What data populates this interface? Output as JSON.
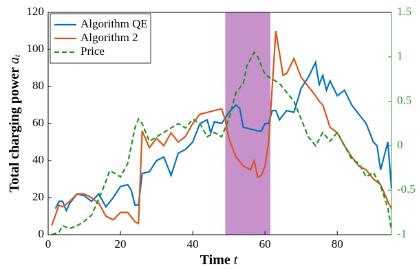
{
  "chart_data": {
    "type": "line",
    "xlabel": "Time",
    "xlabel_symbol": "t",
    "ylabel": "Total charging power",
    "ylabel_symbol": "a",
    "ylabel_subscript": "t",
    "xlim": [
      0,
      95
    ],
    "xticks": [
      0,
      20,
      40,
      60,
      80
    ],
    "ylim": [
      0,
      120
    ],
    "yticks": [
      0,
      20,
      40,
      60,
      80,
      100,
      120
    ],
    "y2lim": [
      -1,
      1.5
    ],
    "y2ticks": [
      -1,
      -0.5,
      0,
      0.5,
      1,
      1.5
    ],
    "y2color": "#2ca02c",
    "shaded_region": [
      49,
      61.5
    ],
    "shaded_color": "#c791cc",
    "legend": "upper left",
    "series": [
      {
        "name": "Algorithm QE",
        "color": "#0072bd",
        "dash": "none",
        "x": [
          2,
          3,
          4,
          5,
          6,
          8,
          10,
          12,
          14,
          16,
          18,
          20,
          22,
          23,
          24,
          25,
          26,
          28,
          30,
          32,
          34,
          36,
          38,
          40,
          42,
          44,
          45,
          46,
          48,
          50,
          52,
          53,
          54,
          56,
          58,
          59,
          60,
          61,
          62,
          63,
          64,
          66,
          68,
          70,
          72,
          74,
          75,
          76,
          77,
          78,
          80,
          82,
          84,
          86,
          88,
          90,
          91,
          92,
          94,
          95
        ],
        "values": [
          14,
          18,
          18,
          13,
          17,
          22,
          21,
          18,
          22,
          15,
          20,
          26,
          27,
          24,
          16,
          16,
          33,
          34,
          40,
          42,
          32,
          44,
          46,
          50,
          60,
          62,
          55,
          61,
          60,
          66,
          70,
          68,
          58,
          57,
          56,
          56,
          60,
          60,
          67,
          67,
          62,
          67,
          66,
          79,
          85,
          93,
          81,
          86,
          78,
          83,
          75,
          78,
          70,
          65,
          60,
          50,
          48,
          35,
          50,
          25
        ]
      },
      {
        "name": "Algorithm 2",
        "color": "#d95319",
        "dash": "none",
        "x": [
          1,
          3,
          4,
          6,
          8,
          10,
          12,
          14,
          16,
          18,
          20,
          22,
          24,
          25,
          26,
          28,
          30,
          32,
          34,
          36,
          38,
          40,
          42,
          44,
          46,
          48,
          49,
          50,
          52,
          54,
          56,
          57,
          58,
          59,
          60,
          61,
          62,
          63,
          64,
          65,
          66,
          68,
          70,
          72,
          74,
          75,
          76,
          78,
          80,
          82,
          84,
          86,
          88,
          90,
          92,
          94,
          95
        ],
        "values": [
          5,
          16,
          15,
          18,
          22,
          22,
          20,
          17,
          10,
          8,
          12,
          12,
          7,
          6,
          56,
          47,
          52,
          48,
          55,
          50,
          53,
          60,
          65,
          66,
          67,
          68,
          62,
          52,
          42,
          37,
          35,
          40,
          31,
          32,
          37,
          50,
          80,
          110,
          98,
          86,
          87,
          95,
          85,
          80,
          75,
          72,
          70,
          58,
          55,
          48,
          42,
          37,
          35,
          30,
          27,
          18,
          14
        ]
      },
      {
        "name": "Price",
        "color": "#1a961a",
        "dash": "7,4",
        "axis": "y2",
        "x": [
          1,
          3,
          4,
          6,
          8,
          10,
          12,
          14,
          16,
          17,
          18,
          20,
          22,
          24,
          25,
          26,
          28,
          30,
          32,
          34,
          36,
          38,
          40,
          42,
          44,
          46,
          48,
          50,
          52,
          54,
          55,
          57,
          58,
          60,
          62,
          64,
          66,
          68,
          70,
          72,
          74,
          76,
          78,
          80,
          82,
          84,
          86,
          88,
          90,
          92,
          94,
          95
        ],
        "values": [
          -1,
          -0.97,
          -0.9,
          -0.93,
          -0.9,
          -0.85,
          -0.78,
          -0.6,
          -0.4,
          -0.28,
          -0.3,
          -0.35,
          -0.2,
          0.2,
          0.3,
          0.25,
          0.05,
          0.1,
          0.15,
          0.2,
          0.25,
          0.2,
          0.3,
          0.25,
          0.1,
          0.15,
          0.1,
          0.3,
          0.6,
          0.7,
          0.9,
          1.05,
          1,
          0.8,
          0.75,
          0.7,
          0.6,
          0.5,
          0.3,
          0.1,
          0,
          0.15,
          0.05,
          0.15,
          0,
          -0.15,
          -0.2,
          -0.35,
          -0.3,
          -0.45,
          -0.7,
          -0.95
        ]
      }
    ]
  }
}
